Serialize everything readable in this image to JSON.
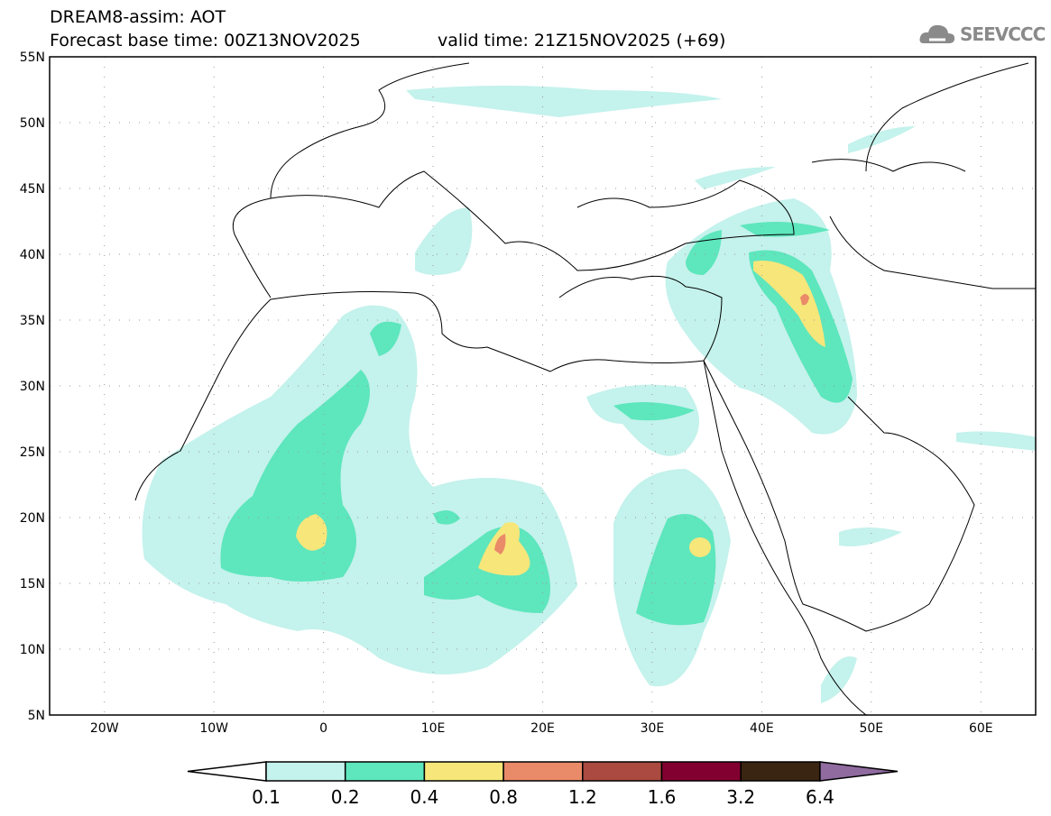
{
  "header": {
    "title": "DREAM8-assim: AOT",
    "base_time": "Forecast base time: 00Z13NOV2025",
    "valid_time": "valid time: 21Z15NOV2025 (+69)"
  },
  "logo": {
    "text": "SEEVCCC",
    "icon": "cloud-icon"
  },
  "map": {
    "lat_labels": [
      "55N",
      "50N",
      "45N",
      "40N",
      "35N",
      "30N",
      "25N",
      "20N",
      "15N",
      "10N",
      "5N"
    ],
    "lon_labels": [
      "20W",
      "10W",
      "0",
      "10E",
      "20E",
      "30E",
      "40E",
      "50E",
      "60E"
    ],
    "extent": {
      "lon": [
        -25,
        65
      ],
      "lat": [
        5,
        55
      ]
    }
  },
  "colorbar": {
    "labels": [
      "0.1",
      "0.2",
      "0.4",
      "0.8",
      "1.2",
      "1.6",
      "3.2",
      "6.4"
    ],
    "colors": [
      "#ffffff",
      "#c4f2ec",
      "#5ee6bd",
      "#f7e67a",
      "#e98a68",
      "#aa4a40",
      "#820030",
      "#3a2412",
      "#8f6b9f"
    ]
  }
}
